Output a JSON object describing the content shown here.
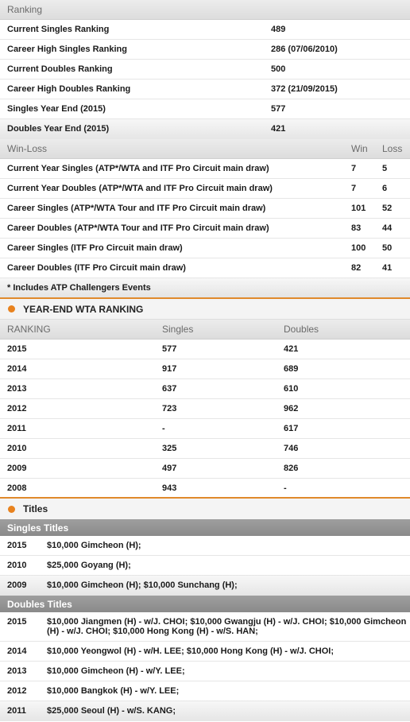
{
  "ranking": {
    "header": "Ranking",
    "rows": [
      {
        "label": "Current Singles Ranking",
        "value": "489"
      },
      {
        "label": "Career High Singles Ranking",
        "value": "286 (07/06/2010)"
      },
      {
        "label": "Current Doubles Ranking",
        "value": "500"
      },
      {
        "label": "Career High Doubles Ranking",
        "value": "372 (21/09/2015)"
      },
      {
        "label": "Singles Year End (2015)",
        "value": "577"
      },
      {
        "label": "Doubles Year End (2015)",
        "value": "421"
      }
    ]
  },
  "winloss": {
    "header": "Win-Loss",
    "win_label": "Win",
    "loss_label": "Loss",
    "rows": [
      {
        "label": "Current Year Singles (ATP*/WTA and ITF Pro Circuit main draw)",
        "win": "7",
        "loss": "5"
      },
      {
        "label": "Current Year Doubles (ATP*/WTA and ITF Pro Circuit main draw)",
        "win": "7",
        "loss": "6"
      },
      {
        "label": "Career Singles (ATP*/WTA Tour and ITF Pro Circuit main draw)",
        "win": "101",
        "loss": "52"
      },
      {
        "label": "Career Doubles (ATP*/WTA Tour and ITF Pro Circuit main draw)",
        "win": "83",
        "loss": "44"
      },
      {
        "label": "Career Singles (ITF Pro Circuit main draw)",
        "win": "100",
        "loss": "50"
      },
      {
        "label": "Career Doubles (ITF Pro Circuit main draw)",
        "win": "82",
        "loss": "41"
      }
    ],
    "note": "* Includes ATP Challengers Events"
  },
  "year_end": {
    "title": "YEAR-END WTA RANKING",
    "col_ranking": "RANKING",
    "col_singles": "Singles",
    "col_doubles": "Doubles",
    "rows": [
      {
        "year": "2015",
        "singles": "577",
        "doubles": "421"
      },
      {
        "year": "2014",
        "singles": "917",
        "doubles": "689"
      },
      {
        "year": "2013",
        "singles": "637",
        "doubles": "610"
      },
      {
        "year": "2012",
        "singles": "723",
        "doubles": "962"
      },
      {
        "year": "2011",
        "singles": "-",
        "doubles": "617"
      },
      {
        "year": "2010",
        "singles": "325",
        "doubles": "746"
      },
      {
        "year": "2009",
        "singles": "497",
        "doubles": "826"
      },
      {
        "year": "2008",
        "singles": "943",
        "doubles": "-"
      }
    ]
  },
  "titles": {
    "title": "Titles",
    "singles_header": "Singles Titles",
    "singles": [
      {
        "year": "2015",
        "text": "$10,000 Gimcheon (H);"
      },
      {
        "year": "2010",
        "text": "$25,000 Goyang (H);"
      },
      {
        "year": "2009",
        "text": "$10,000 Gimcheon (H); $10,000 Sunchang (H);"
      }
    ],
    "doubles_header": "Doubles Titles",
    "doubles": [
      {
        "year": "2015",
        "text": "$10,000 Jiangmen (H) - w/J. CHOI; $10,000 Gwangju (H) - w/J. CHOI; $10,000 Gimcheon (H) - w/J. CHOI; $10,000 Hong Kong (H) - w/S. HAN;"
      },
      {
        "year": "2014",
        "text": "$10,000 Yeongwol (H) - w/H. LEE; $10,000 Hong Kong (H) - w/J. CHOI;"
      },
      {
        "year": "2013",
        "text": "$10,000 Gimcheon (H) - w/Y. LEE;"
      },
      {
        "year": "2012",
        "text": "$10,000 Bangkok (H) - w/Y. LEE;"
      },
      {
        "year": "2011",
        "text": "$25,000 Seoul (H) - w/S. KANG;"
      }
    ]
  },
  "colors": {
    "accent": "#e8821e"
  }
}
